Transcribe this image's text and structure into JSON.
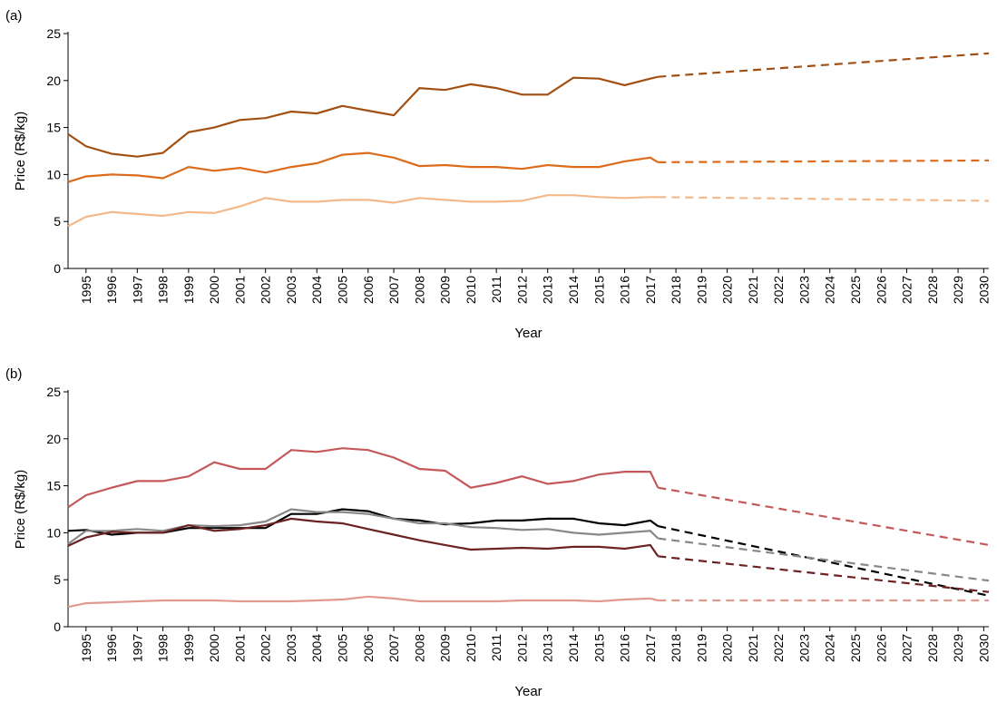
{
  "chart_data": [
    {
      "type": "line",
      "panel_label": "(a)",
      "xlabel": "Year",
      "ylabel": "Price (R$/kg)",
      "xlim": [
        1994.3,
        2030.2
      ],
      "xticks": [
        1995,
        1996,
        1997,
        1998,
        1999,
        2000,
        2001,
        2002,
        2003,
        2004,
        2005,
        2006,
        2007,
        2008,
        2009,
        2010,
        2011,
        2012,
        2013,
        2014,
        2015,
        2016,
        2017,
        2018,
        2019,
        2020,
        2021,
        2022,
        2023,
        2024,
        2025,
        2026,
        2027,
        2028,
        2029,
        2030
      ],
      "ylim": [
        0,
        25
      ],
      "yticks": [
        0,
        5,
        10,
        15,
        20,
        25
      ],
      "series": [
        {
          "color": "#a24f12",
          "dashed": false,
          "x": [
            1994.3,
            1995,
            1996,
            1997,
            1998,
            1999,
            2000,
            2001,
            2002,
            2003,
            2004,
            2005,
            2006,
            2007,
            2008,
            2009,
            2010,
            2011,
            2012,
            2013,
            2014,
            2015,
            2016,
            2017,
            2017.3
          ],
          "values": [
            14.3,
            13,
            12.2,
            11.9,
            12.3,
            14.5,
            15,
            15.8,
            16,
            16.7,
            16.5,
            17.3,
            16.8,
            16.3,
            19.2,
            19,
            19.6,
            19.2,
            18.5,
            18.5,
            20.3,
            20.2,
            19.5,
            20.2,
            20.4
          ]
        },
        {
          "color": "#a24f12",
          "dashed": true,
          "x": [
            2017.3,
            2030.2
          ],
          "values": [
            20.4,
            22.9
          ]
        },
        {
          "color": "#dc6b1c",
          "dashed": false,
          "x": [
            1994.3,
            1995,
            1996,
            1997,
            1998,
            1999,
            2000,
            2001,
            2002,
            2003,
            2004,
            2005,
            2006,
            2007,
            2008,
            2009,
            2010,
            2011,
            2012,
            2013,
            2014,
            2015,
            2016,
            2017,
            2017.3
          ],
          "values": [
            9.2,
            9.8,
            10,
            9.9,
            9.6,
            10.8,
            10.4,
            10.7,
            10.2,
            10.8,
            11.2,
            12.1,
            12.3,
            11.8,
            10.9,
            11,
            10.8,
            10.8,
            10.6,
            11,
            10.8,
            10.8,
            11.4,
            11.8,
            11.3
          ]
        },
        {
          "color": "#dc6b1c",
          "dashed": true,
          "x": [
            2017.3,
            2030.2
          ],
          "values": [
            11.3,
            11.5
          ]
        },
        {
          "color": "#f4b98a",
          "dashed": false,
          "x": [
            1994.3,
            1995,
            1996,
            1997,
            1998,
            1999,
            2000,
            2001,
            2002,
            2003,
            2004,
            2005,
            2006,
            2007,
            2008,
            2009,
            2010,
            2011,
            2012,
            2013,
            2014,
            2015,
            2016,
            2017,
            2017.3
          ],
          "values": [
            4.5,
            5.5,
            6,
            5.8,
            5.6,
            6,
            5.9,
            6.6,
            7.5,
            7.1,
            7.1,
            7.3,
            7.3,
            7,
            7.5,
            7.3,
            7.1,
            7.1,
            7.2,
            7.8,
            7.8,
            7.6,
            7.5,
            7.6,
            7.6
          ]
        },
        {
          "color": "#f4b98a",
          "dashed": true,
          "x": [
            2017.3,
            2030.2
          ],
          "values": [
            7.6,
            7.2
          ]
        }
      ]
    },
    {
      "type": "line",
      "panel_label": "(b)",
      "xlabel": "Year",
      "ylabel": "Price (R$/kg)",
      "xlim": [
        1994.3,
        2030.2
      ],
      "xticks": [
        1995,
        1996,
        1997,
        1998,
        1999,
        2000,
        2001,
        2002,
        2003,
        2004,
        2005,
        2006,
        2007,
        2008,
        2009,
        2010,
        2011,
        2012,
        2013,
        2014,
        2015,
        2016,
        2017,
        2018,
        2019,
        2020,
        2021,
        2022,
        2023,
        2024,
        2025,
        2026,
        2027,
        2028,
        2029,
        2030
      ],
      "ylim": [
        0,
        25
      ],
      "yticks": [
        0,
        5,
        10,
        15,
        20,
        25
      ],
      "series": [
        {
          "color": "#c4585a",
          "dashed": false,
          "x": [
            1994.3,
            1995,
            1996,
            1997,
            1998,
            1999,
            2000,
            2001,
            2002,
            2003,
            2004,
            2005,
            2006,
            2007,
            2008,
            2009,
            2010,
            2011,
            2012,
            2013,
            2014,
            2015,
            2016,
            2017,
            2017.3
          ],
          "values": [
            12.7,
            14,
            14.8,
            15.5,
            15.5,
            16,
            17.5,
            16.8,
            16.8,
            18.8,
            18.6,
            19,
            18.8,
            18,
            16.8,
            16.6,
            14.8,
            15.3,
            16,
            15.2,
            15.5,
            16.2,
            16.5,
            16.5,
            14.8
          ]
        },
        {
          "color": "#c4585a",
          "dashed": true,
          "x": [
            2017.3,
            2030.2
          ],
          "values": [
            14.8,
            8.7
          ]
        },
        {
          "color": "#000000",
          "dashed": false,
          "x": [
            1994.3,
            1995,
            1996,
            1997,
            1998,
            1999,
            2000,
            2001,
            2002,
            2003,
            2004,
            2005,
            2006,
            2007,
            2008,
            2009,
            2010,
            2011,
            2012,
            2013,
            2014,
            2015,
            2016,
            2017,
            2017.3
          ],
          "values": [
            10.2,
            10.3,
            9.8,
            10,
            10,
            10.5,
            10.5,
            10.5,
            10.5,
            12,
            12,
            12.5,
            12.3,
            11.5,
            11.3,
            10.9,
            11,
            11.3,
            11.3,
            11.5,
            11.5,
            11,
            10.8,
            11.3,
            10.7
          ]
        },
        {
          "color": "#000000",
          "dashed": true,
          "x": [
            2017.3,
            2030.2
          ],
          "values": [
            10.7,
            3.3
          ]
        },
        {
          "color": "#888888",
          "dashed": false,
          "x": [
            1994.3,
            1995,
            1996,
            1997,
            1998,
            1999,
            2000,
            2001,
            2002,
            2003,
            2004,
            2005,
            2006,
            2007,
            2008,
            2009,
            2010,
            2011,
            2012,
            2013,
            2014,
            2015,
            2016,
            2017,
            2017.3
          ],
          "values": [
            8.8,
            10.2,
            10.2,
            10.4,
            10.2,
            10.8,
            10.7,
            10.8,
            11.2,
            12.5,
            12.2,
            12.2,
            12,
            11.5,
            11,
            11,
            10.6,
            10.5,
            10.3,
            10.4,
            10,
            9.8,
            10,
            10.2,
            9.4
          ]
        },
        {
          "color": "#888888",
          "dashed": true,
          "x": [
            2017.3,
            2030.2
          ],
          "values": [
            9.4,
            4.9
          ]
        },
        {
          "color": "#6b2222",
          "dashed": false,
          "x": [
            1994.3,
            1995,
            1996,
            1997,
            1998,
            1999,
            2000,
            2001,
            2002,
            2003,
            2004,
            2005,
            2006,
            2007,
            2008,
            2009,
            2010,
            2011,
            2012,
            2013,
            2014,
            2015,
            2016,
            2017,
            2017.3
          ],
          "values": [
            8.6,
            9.5,
            10.1,
            10,
            10,
            10.8,
            10.2,
            10.4,
            10.8,
            11.5,
            11.2,
            11,
            10.4,
            9.8,
            9.2,
            8.7,
            8.2,
            8.3,
            8.4,
            8.3,
            8.5,
            8.5,
            8.3,
            8.7,
            7.5
          ]
        },
        {
          "color": "#6b2222",
          "dashed": true,
          "x": [
            2017.3,
            2030.2
          ],
          "values": [
            7.5,
            3.7
          ]
        },
        {
          "color": "#e09a90",
          "dashed": false,
          "x": [
            1994.3,
            1995,
            1996,
            1997,
            1998,
            1999,
            2000,
            2001,
            2002,
            2003,
            2004,
            2005,
            2006,
            2007,
            2008,
            2009,
            2010,
            2011,
            2012,
            2013,
            2014,
            2015,
            2016,
            2017,
            2017.3
          ],
          "values": [
            2.1,
            2.5,
            2.6,
            2.7,
            2.8,
            2.8,
            2.8,
            2.7,
            2.7,
            2.7,
            2.8,
            2.9,
            3.2,
            3,
            2.7,
            2.7,
            2.7,
            2.7,
            2.8,
            2.8,
            2.8,
            2.7,
            2.9,
            3,
            2.8
          ]
        },
        {
          "color": "#e09a90",
          "dashed": true,
          "x": [
            2017.3,
            2030.2
          ],
          "values": [
            2.8,
            2.8
          ]
        }
      ]
    }
  ]
}
